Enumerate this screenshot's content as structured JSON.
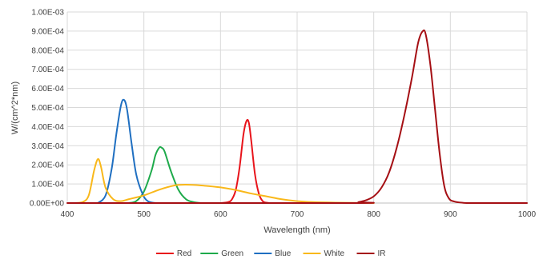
{
  "chart_data": {
    "type": "line",
    "title": "",
    "xlabel": "Wavelength (nm)",
    "ylabel": "W/(cm^2*nm)",
    "xlim": [
      400,
      1000
    ],
    "ylim": [
      0,
      0.001
    ],
    "x_ticks": [
      "400",
      "500",
      "600",
      "700",
      "800",
      "900",
      "1000"
    ],
    "y_ticks": [
      "0.00E+00",
      "1.00E-04",
      "2.00E-04",
      "3.00E-04",
      "4.00E-04",
      "5.00E-04",
      "6.00E-04",
      "7.00E-04",
      "8.00E-04",
      "9.00E-04",
      "1.00E-03"
    ],
    "grid": "vertical and horizontal",
    "legend_position": "bottom",
    "series": [
      {
        "name": "Red",
        "color": "#e8141b",
        "points": [
          [
            600,
            0
          ],
          [
            610,
            5e-06
          ],
          [
            615,
            2e-05
          ],
          [
            620,
            7e-05
          ],
          [
            625,
            0.00019
          ],
          [
            630,
            0.00036
          ],
          [
            634,
            0.00043
          ],
          [
            637,
            0.00042
          ],
          [
            640,
            0.00033
          ],
          [
            645,
            0.00015
          ],
          [
            650,
            5e-05
          ],
          [
            655,
            1e-05
          ],
          [
            660,
            2e-06
          ],
          [
            665,
            0
          ]
        ]
      },
      {
        "name": "Green",
        "color": "#1eaa4b",
        "points": [
          [
            480,
            0
          ],
          [
            490,
            1e-05
          ],
          [
            500,
            6e-05
          ],
          [
            510,
            0.00017
          ],
          [
            515,
            0.00025
          ],
          [
            520,
            0.00029
          ],
          [
            523,
            0.00029
          ],
          [
            527,
            0.00027
          ],
          [
            535,
            0.00017
          ],
          [
            545,
            7e-05
          ],
          [
            555,
            2e-05
          ],
          [
            565,
            5e-06
          ],
          [
            575,
            0
          ]
        ]
      },
      {
        "name": "Blue",
        "color": "#1f6fc1",
        "points": [
          [
            440,
            0
          ],
          [
            450,
            4e-05
          ],
          [
            458,
            0.00018
          ],
          [
            464,
            0.00036
          ],
          [
            470,
            0.00051
          ],
          [
            474,
            0.00054
          ],
          [
            478,
            0.00049
          ],
          [
            484,
            0.00031
          ],
          [
            490,
            0.00015
          ],
          [
            498,
            5e-05
          ],
          [
            505,
            1e-05
          ],
          [
            515,
            0
          ]
        ]
      },
      {
        "name": "White",
        "color": "#f9b81a",
        "points": [
          [
            410,
            0
          ],
          [
            420,
            5e-06
          ],
          [
            428,
            4e-05
          ],
          [
            435,
            0.00017
          ],
          [
            440,
            0.00023
          ],
          [
            444,
            0.00019
          ],
          [
            450,
            8e-05
          ],
          [
            460,
            2e-05
          ],
          [
            470,
            1e-05
          ],
          [
            480,
            2e-05
          ],
          [
            500,
            4e-05
          ],
          [
            520,
            7e-05
          ],
          [
            540,
            9.2e-05
          ],
          [
            555,
            9.6e-05
          ],
          [
            575,
            9.2e-05
          ],
          [
            600,
            8.2e-05
          ],
          [
            620,
            6.8e-05
          ],
          [
            640,
            5e-05
          ],
          [
            660,
            3.5e-05
          ],
          [
            680,
            2e-05
          ],
          [
            700,
            1e-05
          ],
          [
            720,
            5e-06
          ],
          [
            750,
            2e-06
          ],
          [
            800,
            0
          ]
        ]
      },
      {
        "name": "IR",
        "color": "#a50f14",
        "points": [
          [
            400,
            0
          ],
          [
            770,
            0
          ],
          [
            780,
            5e-06
          ],
          [
            790,
            1.5e-05
          ],
          [
            800,
            3.5e-05
          ],
          [
            810,
            8e-05
          ],
          [
            820,
            0.00016
          ],
          [
            830,
            0.00029
          ],
          [
            840,
            0.00046
          ],
          [
            850,
            0.00066
          ],
          [
            858,
            0.00084
          ],
          [
            864,
            0.0009
          ],
          [
            868,
            0.00088
          ],
          [
            874,
            0.00072
          ],
          [
            880,
            0.00049
          ],
          [
            886,
            0.00026
          ],
          [
            892,
            9e-05
          ],
          [
            898,
            2.5e-05
          ],
          [
            905,
            8e-06
          ],
          [
            915,
            2e-06
          ],
          [
            930,
            0
          ],
          [
            1000,
            0
          ]
        ]
      }
    ]
  }
}
